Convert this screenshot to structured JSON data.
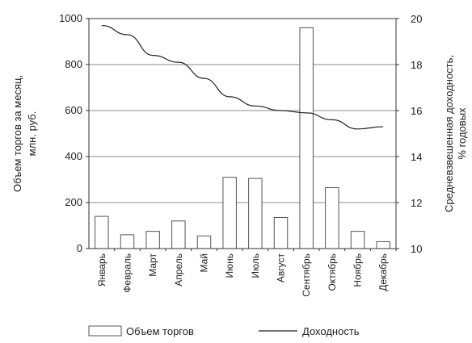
{
  "chart_data": {
    "type": "bar",
    "categories": [
      "Январь",
      "Февраль",
      "Март",
      "Апрель",
      "Май",
      "Июнь",
      "Июль",
      "Август",
      "Сентябрь",
      "Октябрь",
      "Ноябрь",
      "Декабрь"
    ],
    "series": [
      {
        "name": "Объем торгов",
        "type": "bar",
        "axis": "left",
        "values": [
          140,
          60,
          75,
          120,
          55,
          310,
          305,
          135,
          960,
          265,
          75,
          30
        ]
      },
      {
        "name": "Доходность",
        "type": "line",
        "axis": "right",
        "values": [
          19.7,
          19.3,
          18.4,
          18.1,
          17.4,
          16.6,
          16.2,
          16.0,
          15.9,
          15.6,
          15.2,
          15.3
        ]
      }
    ],
    "ylabel_left": [
      "Объем торгов за месяц,",
      "млн. руб."
    ],
    "ylabel_right": [
      "Средневзвешенная доходность,",
      "% годовых"
    ],
    "ylim_left": [
      0,
      1000
    ],
    "yticks_left": [
      "0",
      "200",
      "400",
      "600",
      "800",
      "1000"
    ],
    "ylim_right": [
      10,
      20
    ],
    "yticks_right": [
      "10",
      "12",
      "14",
      "16",
      "18",
      "20"
    ],
    "grid": true,
    "legend": "bottom",
    "colors": {
      "bar_fill": "#ffffff",
      "bar_stroke": "#555555",
      "line": "#222222",
      "grid": "#888888"
    }
  }
}
